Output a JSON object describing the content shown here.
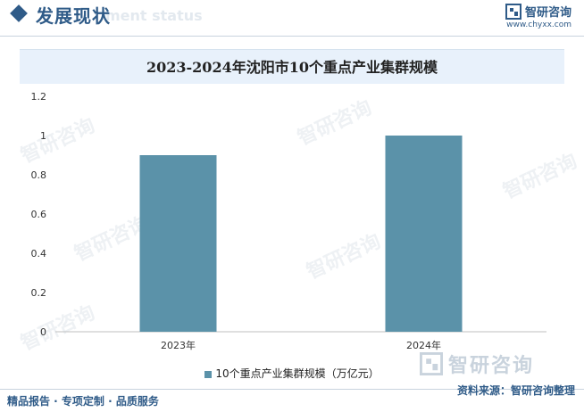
{
  "header": {
    "section_title": "发展现状",
    "ghost_text": "ment status",
    "logo_name": "智研咨询",
    "logo_url": "www.chyxx.com"
  },
  "watermark": {
    "text": "智研咨询"
  },
  "chart_data": {
    "type": "bar",
    "title": "2023-2024年沈阳市10个重点产业集群规模",
    "categories": [
      "2023年",
      "2024年"
    ],
    "series": [
      {
        "name": "10个重点产业集群规模（万亿元）",
        "values": [
          0.9,
          1.0
        ]
      }
    ],
    "ylim": [
      0,
      1.2
    ],
    "yticks": [
      "0",
      "0.2",
      "0.4",
      "0.6",
      "0.8",
      "1",
      "1.2"
    ],
    "bar_color": "#5b92a9",
    "legend": "bottom"
  },
  "footer": {
    "left": "精品报告 · 专项定制 · 品质服务",
    "right": "资料来源：智研咨询整理"
  }
}
